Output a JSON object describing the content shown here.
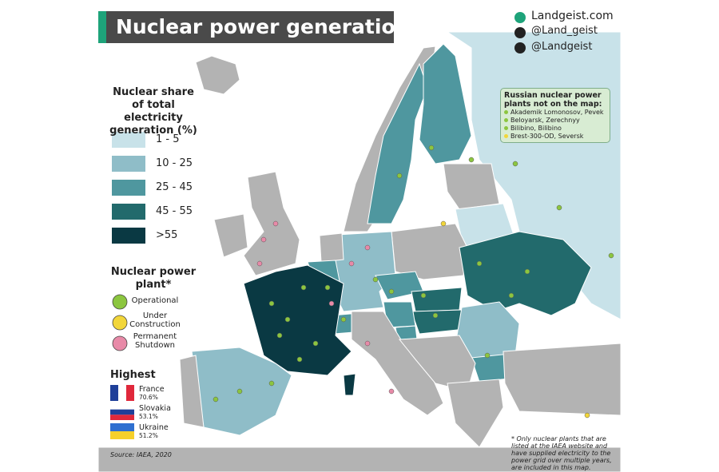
{
  "header": {
    "title": "Nuclear power generation",
    "website": "Landgeist.com",
    "instagram": "@Land_geist",
    "twitter": "@Landgeist"
  },
  "legend": {
    "title": "Nuclear share of total electricity generation (%)",
    "bins": [
      {
        "label": "1 - 5",
        "color": "#c8e2e9"
      },
      {
        "label": "10 - 25",
        "color": "#8fbdc8"
      },
      {
        "label": "25 - 45",
        "color": "#4f979f"
      },
      {
        "label": "45 - 55",
        "color": "#226a6c"
      },
      {
        "label": ">55",
        "color": "#0a3943"
      }
    ]
  },
  "plant_legend": {
    "title": "Nuclear power plant*",
    "items": [
      {
        "label": "Operational",
        "color": "#8cc63f"
      },
      {
        "label": "Under Construction",
        "color": "#f2d63a"
      },
      {
        "label": "Permanent Shutdown",
        "color": "#e88aa8"
      }
    ]
  },
  "highest": {
    "title": "Highest",
    "entries": [
      {
        "country": "France",
        "value": "70.6%"
      },
      {
        "country": "Slovakia",
        "value": "53.1%"
      },
      {
        "country": "Ukraine",
        "value": "51.2%"
      }
    ]
  },
  "russia_box": {
    "title": "Russian nuclear power plants not on the map:",
    "items": [
      {
        "name": "Akademik Lomonosov, Pevek",
        "color": "#8cc63f"
      },
      {
        "name": "Beloyarsk, Zerechnyy",
        "color": "#8cc63f"
      },
      {
        "name": "Bilibino, Bilibino",
        "color": "#8cc63f"
      },
      {
        "name": "Brest-300-OD, Seversk",
        "color": "#f2d63a"
      }
    ]
  },
  "footnote": "* Only nuclear plants that are listed at the IAEA website and have supplied electricity to the power grid over multiple years, are included in this map.",
  "source": "Source: IAEA, 2020"
}
